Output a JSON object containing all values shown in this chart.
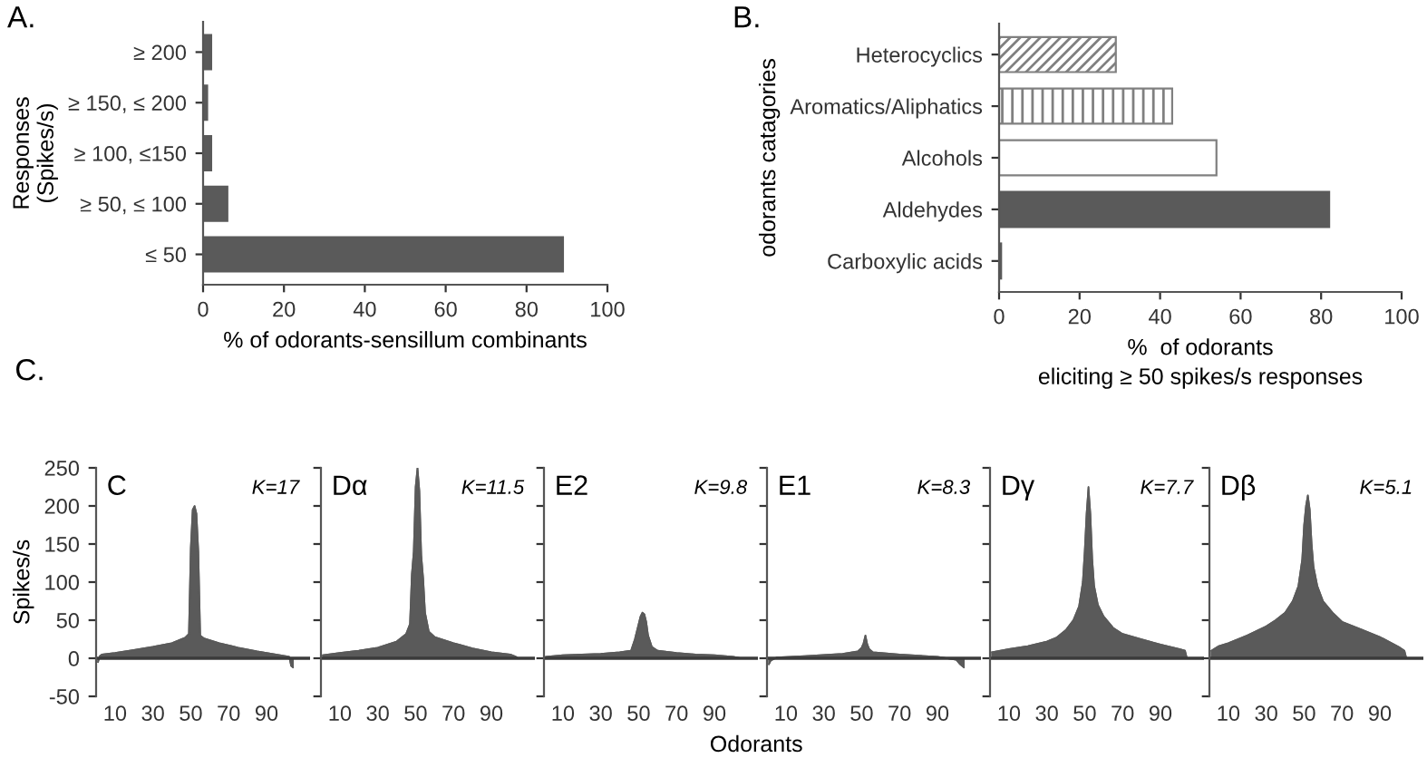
{
  "chart_data": [
    {
      "type": "bar",
      "orientation": "horizontal",
      "annotations": [
        "A."
      ],
      "ylabel": "Responses\n(Spikes/s)",
      "xlabel": "% of odorants-sensillum combinants",
      "categories": [
        "≥ 200",
        "≥ 150, ≤ 200",
        "≥ 100, ≤150",
        "≥ 50, ≤ 100",
        "≤ 50"
      ],
      "values": [
        2,
        1,
        2,
        6,
        89
      ],
      "color": "#5a5a5a",
      "xlim": [
        0,
        100
      ],
      "xticks": [
        0,
        20,
        40,
        60,
        80,
        100
      ],
      "grid": false,
      "legend": false
    },
    {
      "type": "bar",
      "orientation": "horizontal",
      "annotations": [
        "B."
      ],
      "ylabel": "odorants catagories",
      "xlabel": "%  of odorants\neliciting ≥ 50 spikes/s responses",
      "categories": [
        "Heterocyclics",
        "Aromatics/Aliphatics",
        "Alcohols",
        "Aldehydes",
        "Carboxylic acids"
      ],
      "values": [
        29,
        43,
        54,
        82,
        0.5
      ],
      "colors": [
        "#808080",
        "#808080",
        "#ffffff",
        "#5a5a5a",
        "#5a5a5a"
      ],
      "xlim": [
        0,
        100
      ],
      "xticks": [
        0,
        20,
        40,
        60,
        80,
        100
      ],
      "grid": false,
      "legend": false
    },
    {
      "type": "area",
      "annotations": [
        "C."
      ],
      "title": "C",
      "subtitle": "K=17",
      "ylabel": "Spikes/s",
      "color": "#5a5a5a",
      "x": [
        1,
        2,
        3,
        10,
        20,
        30,
        40,
        47,
        49,
        50,
        51,
        52,
        53,
        54,
        55,
        57,
        65,
        75,
        85,
        95,
        100,
        102,
        103,
        104
      ],
      "values": [
        -5,
        3,
        5,
        7,
        11,
        15,
        20,
        27,
        32,
        145,
        195,
        200,
        190,
        140,
        30,
        26,
        20,
        14,
        9,
        5,
        3,
        2,
        -10,
        -12
      ],
      "xlim": [
        0,
        113
      ],
      "xticks": [
        10,
        30,
        50,
        70,
        90
      ],
      "ylim": [
        -50,
        250
      ],
      "yticks": [
        -50,
        0,
        50,
        100,
        150,
        200,
        250
      ],
      "grid": false,
      "legend": false
    },
    {
      "type": "area",
      "title": "Dα",
      "subtitle": "K=11.5",
      "color": "#5a5a5a",
      "tick_labels": "x",
      "x": [
        1,
        10,
        20,
        30,
        40,
        45,
        47,
        48,
        49,
        50,
        51,
        52,
        53,
        54,
        55,
        57,
        60,
        70,
        80,
        90,
        100,
        103,
        104
      ],
      "values": [
        4,
        7,
        10,
        14,
        22,
        32,
        45,
        110,
        140,
        225,
        250,
        220,
        135,
        105,
        60,
        35,
        28,
        20,
        13,
        8,
        5,
        2,
        0
      ],
      "xlim": [
        0,
        113
      ],
      "xticks": [
        10,
        30,
        50,
        70,
        90
      ],
      "ylim": [
        -50,
        250
      ],
      "yticks": [
        -50,
        0,
        50,
        100,
        150,
        200,
        250
      ],
      "grid": false,
      "legend": false
    },
    {
      "type": "area",
      "title": "E2",
      "subtitle": "K=9.8",
      "color": "#5a5a5a",
      "tick_labels": "x",
      "x": [
        1,
        10,
        20,
        30,
        40,
        46,
        48,
        50,
        51,
        52,
        53,
        54,
        55,
        57,
        60,
        70,
        80,
        90,
        100,
        104
      ],
      "values": [
        2,
        4,
        5,
        6,
        8,
        10,
        25,
        45,
        55,
        60,
        58,
        48,
        30,
        15,
        10,
        7,
        5,
        4,
        2,
        0
      ],
      "xlim": [
        0,
        113
      ],
      "xticks": [
        10,
        30,
        50,
        70,
        90
      ],
      "ylim": [
        -50,
        250
      ],
      "yticks": [
        -50,
        0,
        50,
        100,
        150,
        200,
        250
      ],
      "grid": false,
      "legend": false
    },
    {
      "type": "area",
      "title": "E1",
      "subtitle": "K=8.3",
      "xlabel": "Odorants",
      "color": "#5a5a5a",
      "tick_labels": "x",
      "x": [
        1,
        2,
        5,
        20,
        40,
        48,
        50,
        51,
        52,
        53,
        54,
        56,
        70,
        90,
        100,
        102,
        104
      ],
      "values": [
        -8,
        -3,
        1,
        3,
        6,
        9,
        14,
        20,
        30,
        18,
        12,
        8,
        5,
        2,
        -2,
        -8,
        -12
      ],
      "xlim": [
        0,
        113
      ],
      "xticks": [
        10,
        30,
        50,
        70,
        90
      ],
      "ylim": [
        -50,
        250
      ],
      "yticks": [
        -50,
        0,
        50,
        100,
        150,
        200,
        250
      ],
      "grid": false,
      "legend": false
    },
    {
      "type": "area",
      "title": "Dγ",
      "subtitle": "K=7.7",
      "color": "#5a5a5a",
      "tick_labels": "x",
      "x": [
        1,
        10,
        20,
        30,
        35,
        40,
        44,
        47,
        49,
        50,
        51,
        52,
        53,
        54,
        55,
        57,
        60,
        65,
        70,
        80,
        90,
        100,
        103,
        104
      ],
      "values": [
        8,
        12,
        16,
        22,
        27,
        37,
        50,
        68,
        100,
        140,
        190,
        225,
        190,
        130,
        95,
        70,
        55,
        40,
        32,
        25,
        18,
        12,
        10,
        0
      ],
      "xlim": [
        0,
        113
      ],
      "xticks": [
        10,
        30,
        50,
        70,
        90
      ],
      "ylim": [
        -50,
        250
      ],
      "yticks": [
        -50,
        0,
        50,
        100,
        150,
        200,
        250
      ],
      "grid": false,
      "legend": false
    },
    {
      "type": "area",
      "title": "Dβ",
      "subtitle": "K=5.1",
      "color": "#5a5a5a",
      "tick_labels": "x",
      "x": [
        1,
        5,
        10,
        20,
        30,
        35,
        40,
        44,
        47,
        49,
        50,
        51,
        52,
        53,
        54,
        55,
        57,
        60,
        65,
        70,
        80,
        90,
        100,
        103,
        104
      ],
      "values": [
        10,
        16,
        20,
        30,
        42,
        50,
        60,
        75,
        95,
        130,
        175,
        200,
        214,
        195,
        150,
        120,
        95,
        75,
        60,
        48,
        38,
        28,
        15,
        10,
        0
      ],
      "xlim": [
        0,
        113
      ],
      "xticks": [
        10,
        30,
        50,
        70,
        90
      ],
      "ylim": [
        -50,
        250
      ],
      "yticks": [
        -50,
        0,
        50,
        100,
        150,
        200,
        250
      ],
      "grid": false,
      "legend": false
    }
  ]
}
